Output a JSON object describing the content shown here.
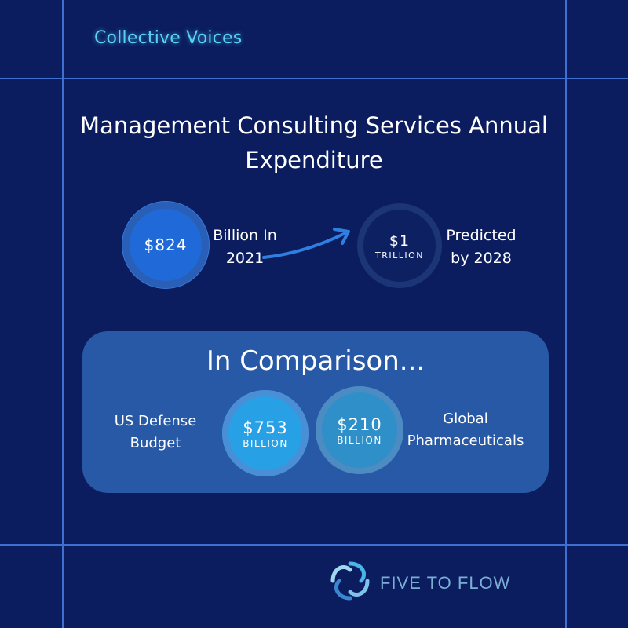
{
  "brand": "Collective Voices",
  "title": "Management Consulting Services Annual Expenditure",
  "stats": {
    "current": {
      "value": "$824",
      "label_line1": "Billion In",
      "label_line2": "2021"
    },
    "future": {
      "value": "$1",
      "unit": "TRILLION",
      "label_line1": "Predicted",
      "label_line2": "by 2028"
    }
  },
  "comparison": {
    "title": "In Comparison...",
    "defense": {
      "label_line1": "US Defense",
      "label_line2": "Budget",
      "value": "$753",
      "unit": "BILLION"
    },
    "pharma": {
      "label_line1": "Global",
      "label_line2": "Pharmaceuticals",
      "value": "$210",
      "unit": "BILLION"
    }
  },
  "logo": {
    "text": "FIVE TO FLOW",
    "icon": "spiral-logo-icon"
  },
  "colors": {
    "background": "#0b1d5e",
    "grid": "#3f6fd1",
    "brand": "#5ad0f5",
    "panel": "#2759a6",
    "accent": "#1f6ad8"
  }
}
